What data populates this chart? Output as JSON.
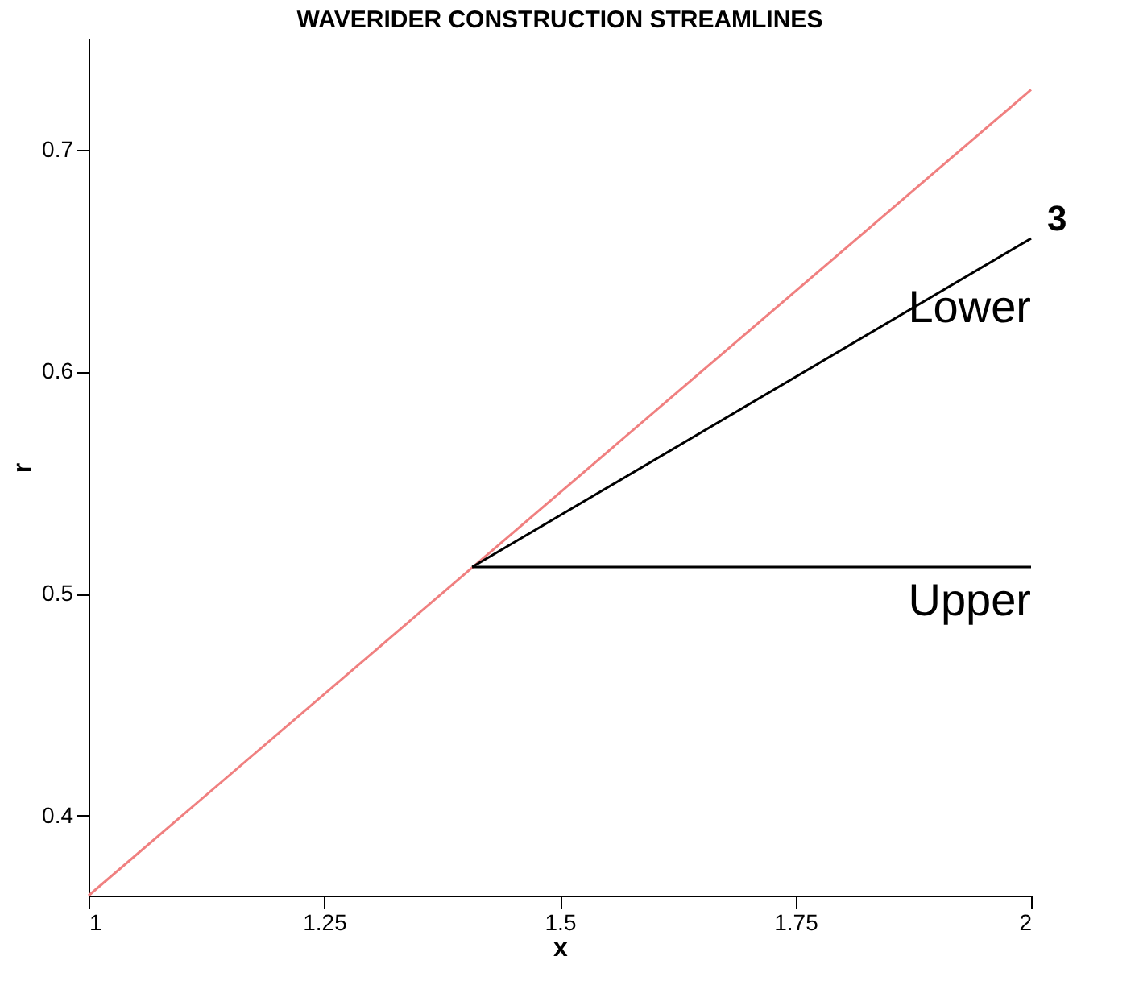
{
  "chart_data": {
    "type": "line",
    "title": "WAVERIDER CONSTRUCTION STREAMLINES",
    "xlabel": "x",
    "ylabel": "r",
    "xlim": [
      1,
      2
    ],
    "ylim": [
      0.364,
      0.75
    ],
    "xticks": [
      1,
      1.25,
      1.5,
      1.75,
      2
    ],
    "yticks": [
      0.4,
      0.5,
      0.6,
      0.7
    ],
    "grid": false,
    "legend": false,
    "marker": "none",
    "line_style": "solid",
    "series": [
      {
        "color": "#f08080",
        "x": [
          1,
          2
        ],
        "values": [
          0.364,
          0.727
        ]
      },
      {
        "name": "Lower",
        "color": "#000000",
        "x": [
          1.407,
          2
        ],
        "values": [
          0.512,
          0.66
        ]
      },
      {
        "name": "Upper",
        "color": "#000000",
        "x": [
          1.407,
          2
        ],
        "values": [
          0.512,
          0.512
        ]
      }
    ],
    "annotations": [
      {
        "text": "3",
        "x": 2,
        "y": 0.66
      }
    ]
  }
}
